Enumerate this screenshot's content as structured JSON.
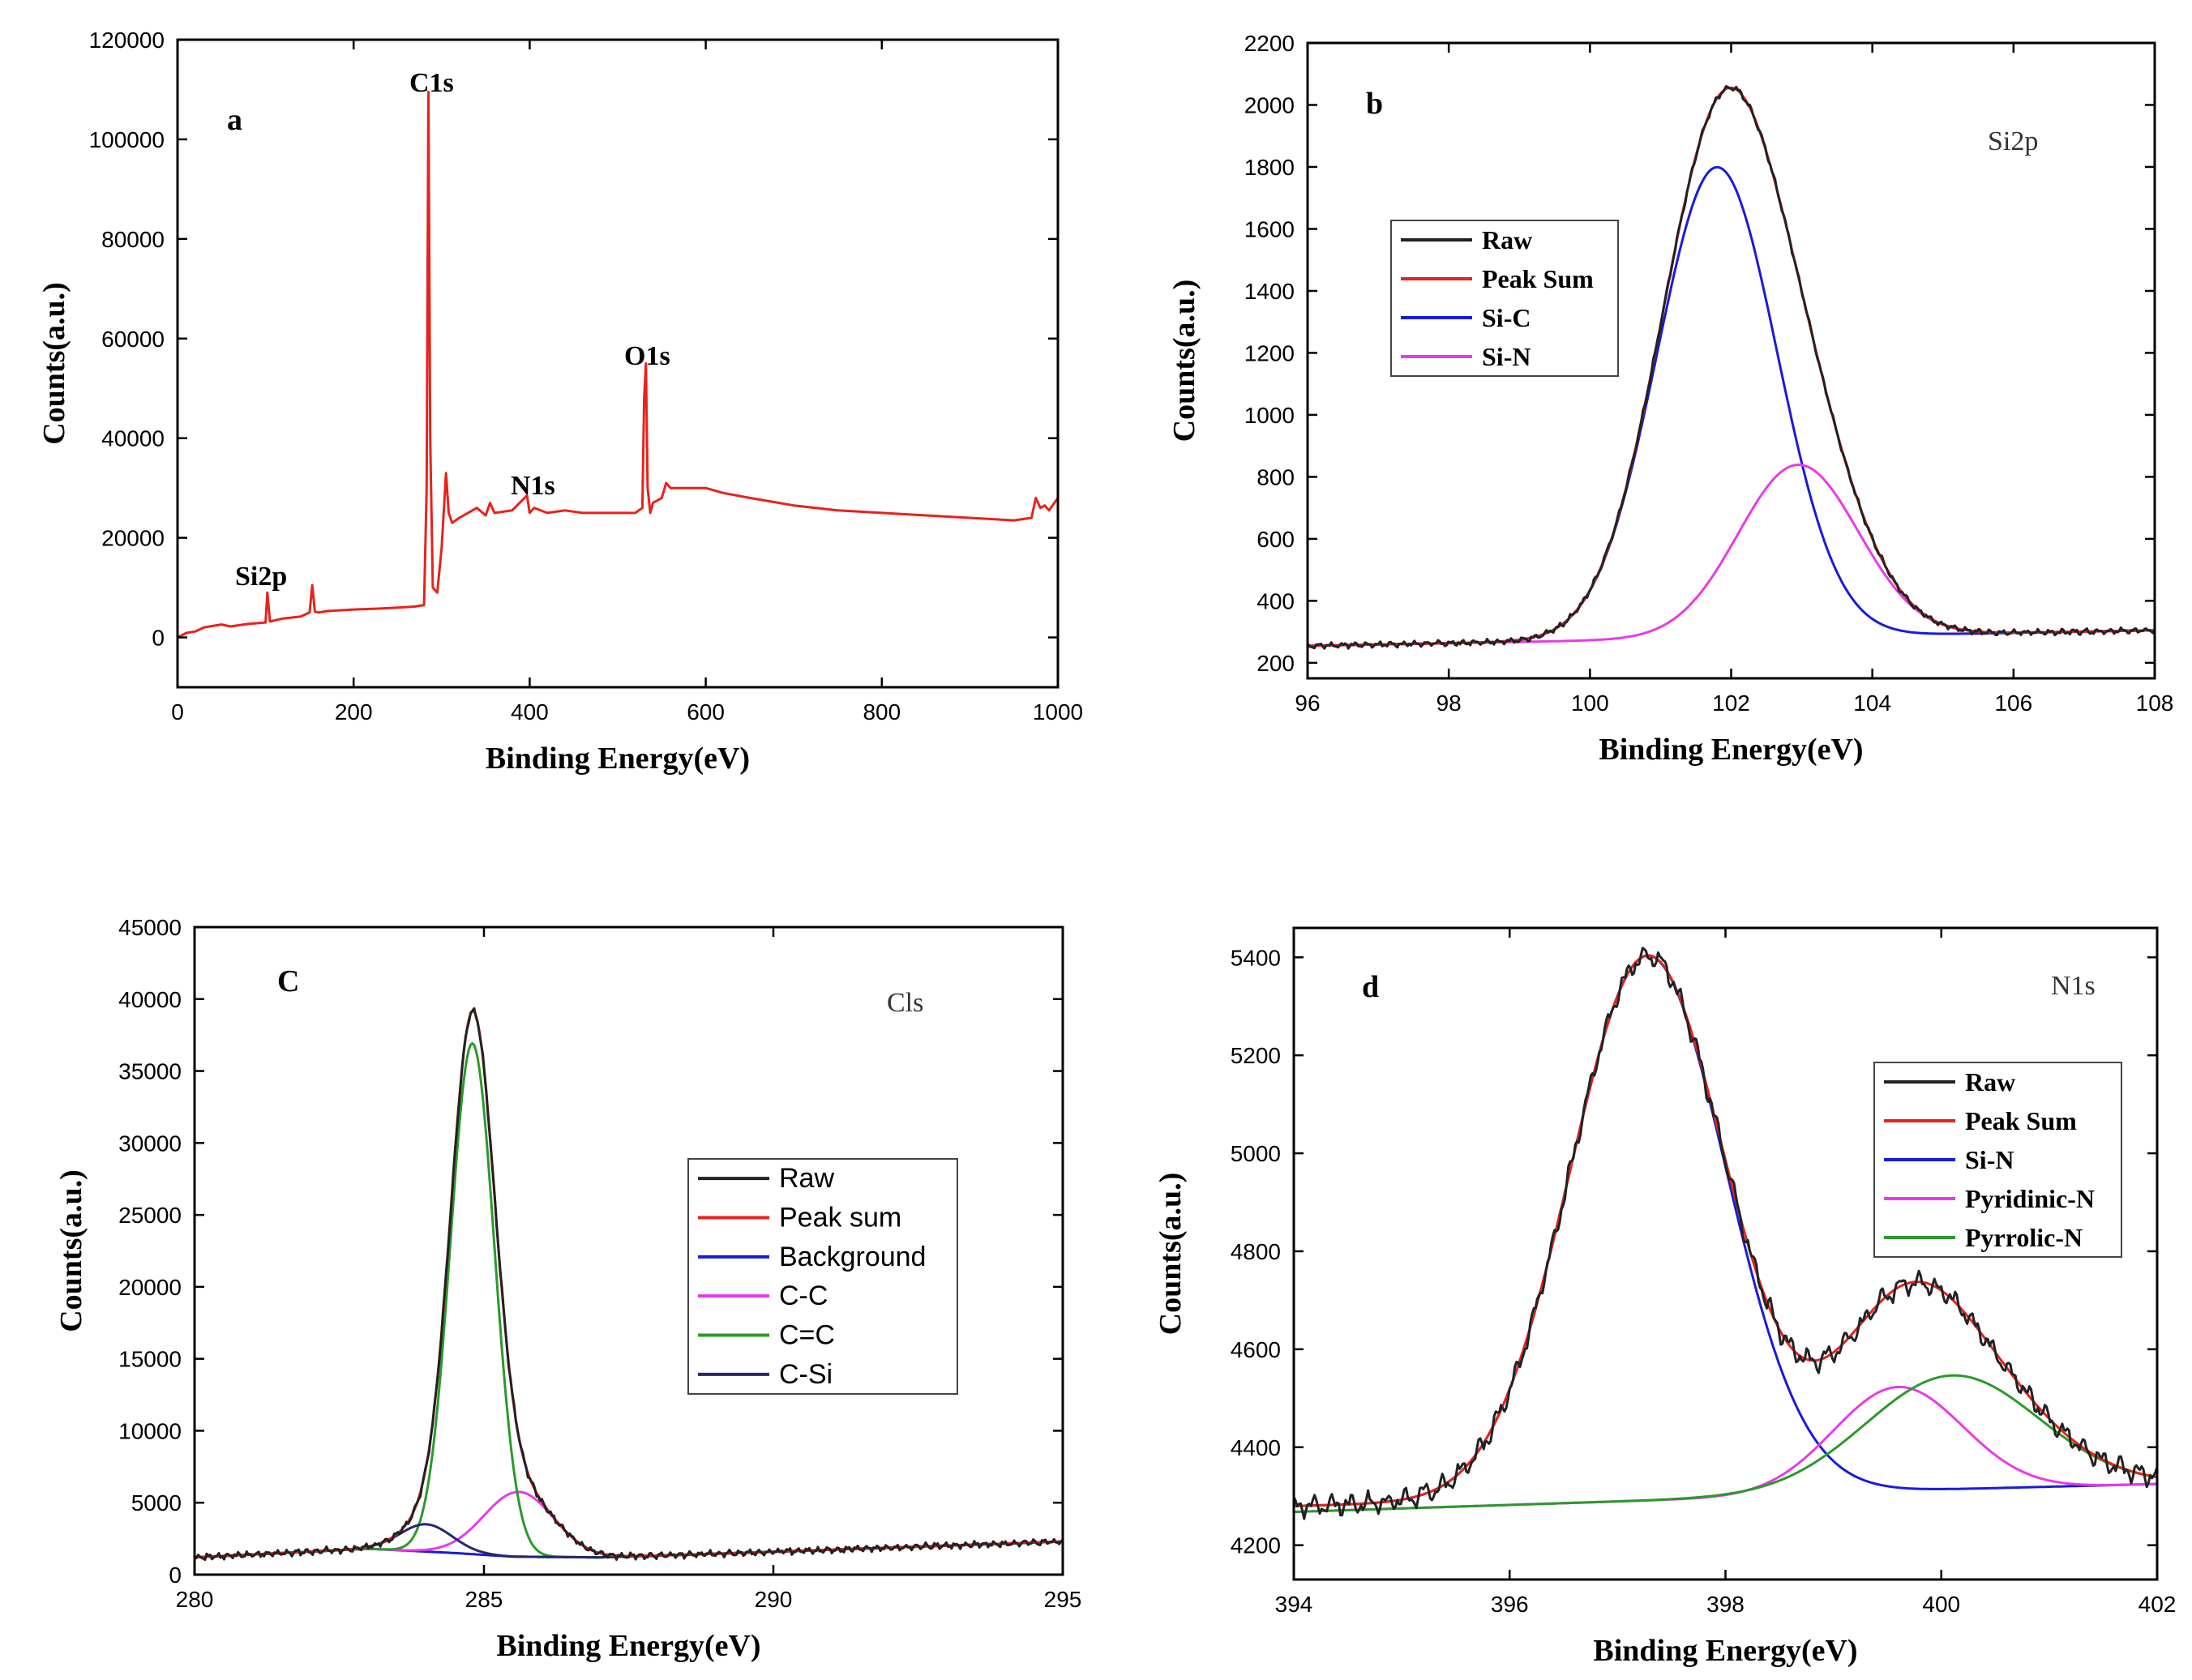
{
  "chart_data": [
    {
      "id": "a",
      "type": "line",
      "panel_label": "a",
      "xlabel": "Binding Energy(eV)",
      "ylabel": "Counts(a.u.)",
      "xlim": [
        0,
        1000
      ],
      "ylim": [
        -10000,
        120000
      ],
      "xticks": [
        0,
        200,
        400,
        600,
        800,
        1000
      ],
      "yticks": [
        0,
        20000,
        40000,
        60000,
        80000,
        100000,
        120000
      ],
      "annotations": [
        {
          "text": "Si2p",
          "x": 100,
          "y": 11000
        },
        {
          "text": "C1s",
          "x": 285,
          "y": 110000
        },
        {
          "text": "N1s",
          "x": 399,
          "y": 29000
        },
        {
          "text": "O1s",
          "x": 532,
          "y": 55000
        }
      ],
      "series": [
        {
          "name": "Survey",
          "color": "#e8221b",
          "x": [
            0,
            10,
            20,
            30,
            40,
            50,
            60,
            80,
            100,
            102,
            105,
            110,
            120,
            140,
            150,
            153,
            156,
            160,
            170,
            200,
            230,
            250,
            270,
            280,
            283,
            285,
            287,
            290,
            295,
            300,
            305,
            308,
            312,
            320,
            330,
            340,
            350,
            355,
            360,
            380,
            397,
            400,
            405,
            420,
            440,
            460,
            500,
            520,
            528,
            530,
            532,
            534,
            537,
            540,
            550,
            555,
            560,
            580,
            600,
            620,
            650,
            700,
            750,
            800,
            850,
            900,
            950,
            970,
            975,
            980,
            985,
            990,
            1000
          ],
          "y": [
            0,
            900,
            1200,
            2000,
            2300,
            2600,
            2200,
            2700,
            3000,
            9000,
            3200,
            3400,
            3800,
            4200,
            5000,
            10500,
            5200,
            5000,
            5300,
            5600,
            5800,
            6000,
            6200,
            6500,
            30000,
            109500,
            40000,
            10000,
            9000,
            18000,
            33000,
            25000,
            23000,
            24000,
            25000,
            26000,
            24500,
            27000,
            25000,
            25500,
            28500,
            25000,
            26000,
            25000,
            25500,
            25000,
            25000,
            25000,
            26000,
            48000,
            55000,
            30000,
            25000,
            27000,
            28000,
            31000,
            30000,
            30000,
            30000,
            29000,
            28000,
            26500,
            25500,
            25000,
            24500,
            24000,
            23500,
            24000,
            28000,
            26000,
            26500,
            25500,
            28000
          ]
        }
      ]
    },
    {
      "id": "b",
      "type": "line",
      "panel_label": "b",
      "region_label": "Si2p",
      "xlabel": "Binding Energy(eV)",
      "ylabel": "Counts(a.u.)",
      "xlim": [
        96,
        108
      ],
      "ylim": [
        150,
        2200
      ],
      "xticks": [
        96,
        98,
        100,
        102,
        104,
        106,
        108
      ],
      "yticks": [
        200,
        400,
        600,
        800,
        1000,
        1200,
        1400,
        1600,
        1800,
        2000,
        2200
      ],
      "legend_position": "top-left",
      "series": [
        {
          "name": "Raw",
          "color": "#222222",
          "model": "sum",
          "noise": 6
        },
        {
          "name": "Peak Sum",
          "color": "#e8221b",
          "model": "sum"
        },
        {
          "name": "Si-C",
          "color": "#1a1adb",
          "model": "gauss",
          "baseline_start": 255,
          "baseline_end": 305,
          "center": 101.8,
          "amplitude": 1520,
          "sigma": 0.85
        },
        {
          "name": "Si-N",
          "color": "#e83ae8",
          "model": "gauss",
          "baseline_start": 255,
          "baseline_end": 305,
          "center": 102.95,
          "amplitude": 555,
          "sigma": 0.85
        }
      ]
    },
    {
      "id": "c",
      "type": "line",
      "panel_label": "C",
      "region_label": "Cls",
      "xlabel": "Binding Energy(eV)",
      "ylabel": "Counts(a.u.)",
      "xlim": [
        280,
        295
      ],
      "ylim": [
        0,
        45000
      ],
      "xticks": [
        280,
        285,
        290,
        295
      ],
      "yticks": [
        0,
        5000,
        10000,
        15000,
        20000,
        25000,
        30000,
        35000,
        40000,
        45000
      ],
      "legend_position": "center-right",
      "series": [
        {
          "name": "Raw",
          "color": "#222222",
          "model": "sum",
          "noise": 150
        },
        {
          "name": "Peak sum",
          "color": "#e8221b",
          "model": "sum"
        },
        {
          "name": "Background",
          "color": "#1a1adb",
          "model": "background",
          "points": [
            [
              280,
              1200
            ],
            [
              283,
              1800
            ],
            [
              284.5,
              1500
            ],
            [
              285.5,
              1250
            ],
            [
              287,
              1200
            ],
            [
              289,
              1450
            ],
            [
              295,
              2300
            ]
          ]
        },
        {
          "name": "C-C",
          "color": "#e83ae8",
          "model": "gauss",
          "center": 285.6,
          "amplitude": 4500,
          "sigma": 0.6
        },
        {
          "name": "C=C",
          "color": "#2a9a2a",
          "model": "gauss",
          "center": 284.8,
          "amplitude": 35500,
          "sigma": 0.38
        },
        {
          "name": "C-Si",
          "color": "#26266e",
          "model": "gauss",
          "center": 284.0,
          "amplitude": 1900,
          "sigma": 0.45
        }
      ]
    },
    {
      "id": "d",
      "type": "line",
      "panel_label": "d",
      "region_label": "N1s",
      "xlabel": "Binding Energy(eV)",
      "ylabel": "Counts(a.u.)",
      "xlim": [
        394,
        402
      ],
      "ylim": [
        4130,
        5460
      ],
      "xticks": [
        394,
        396,
        398,
        400,
        402
      ],
      "yticks": [
        4200,
        4400,
        4600,
        4800,
        5000,
        5200,
        5400
      ],
      "legend_position": "top-right",
      "series": [
        {
          "name": "Raw",
          "color": "#222222",
          "model": "sum",
          "noise": 14
        },
        {
          "name": "Peak Sum",
          "color": "#e8221b",
          "model": "sum"
        },
        {
          "name": "Si-N",
          "color": "#1a1adb",
          "model": "gauss",
          "baseline_start": 4280,
          "baseline_end": 4325,
          "center": 397.28,
          "amplitude": 1105,
          "sigma": 0.72
        },
        {
          "name": "Pyridinic-N",
          "color": "#e83ae8",
          "model": "gauss",
          "baseline_start": 4268,
          "baseline_end": 4325,
          "center": 399.6,
          "amplitude": 215,
          "sigma": 0.6
        },
        {
          "name": "Pyrrolic-N",
          "color": "#2a9a2a",
          "model": "gauss",
          "baseline_start": 4268,
          "baseline_end": 4325,
          "center": 400.1,
          "amplitude": 235,
          "sigma": 0.8
        }
      ]
    }
  ]
}
